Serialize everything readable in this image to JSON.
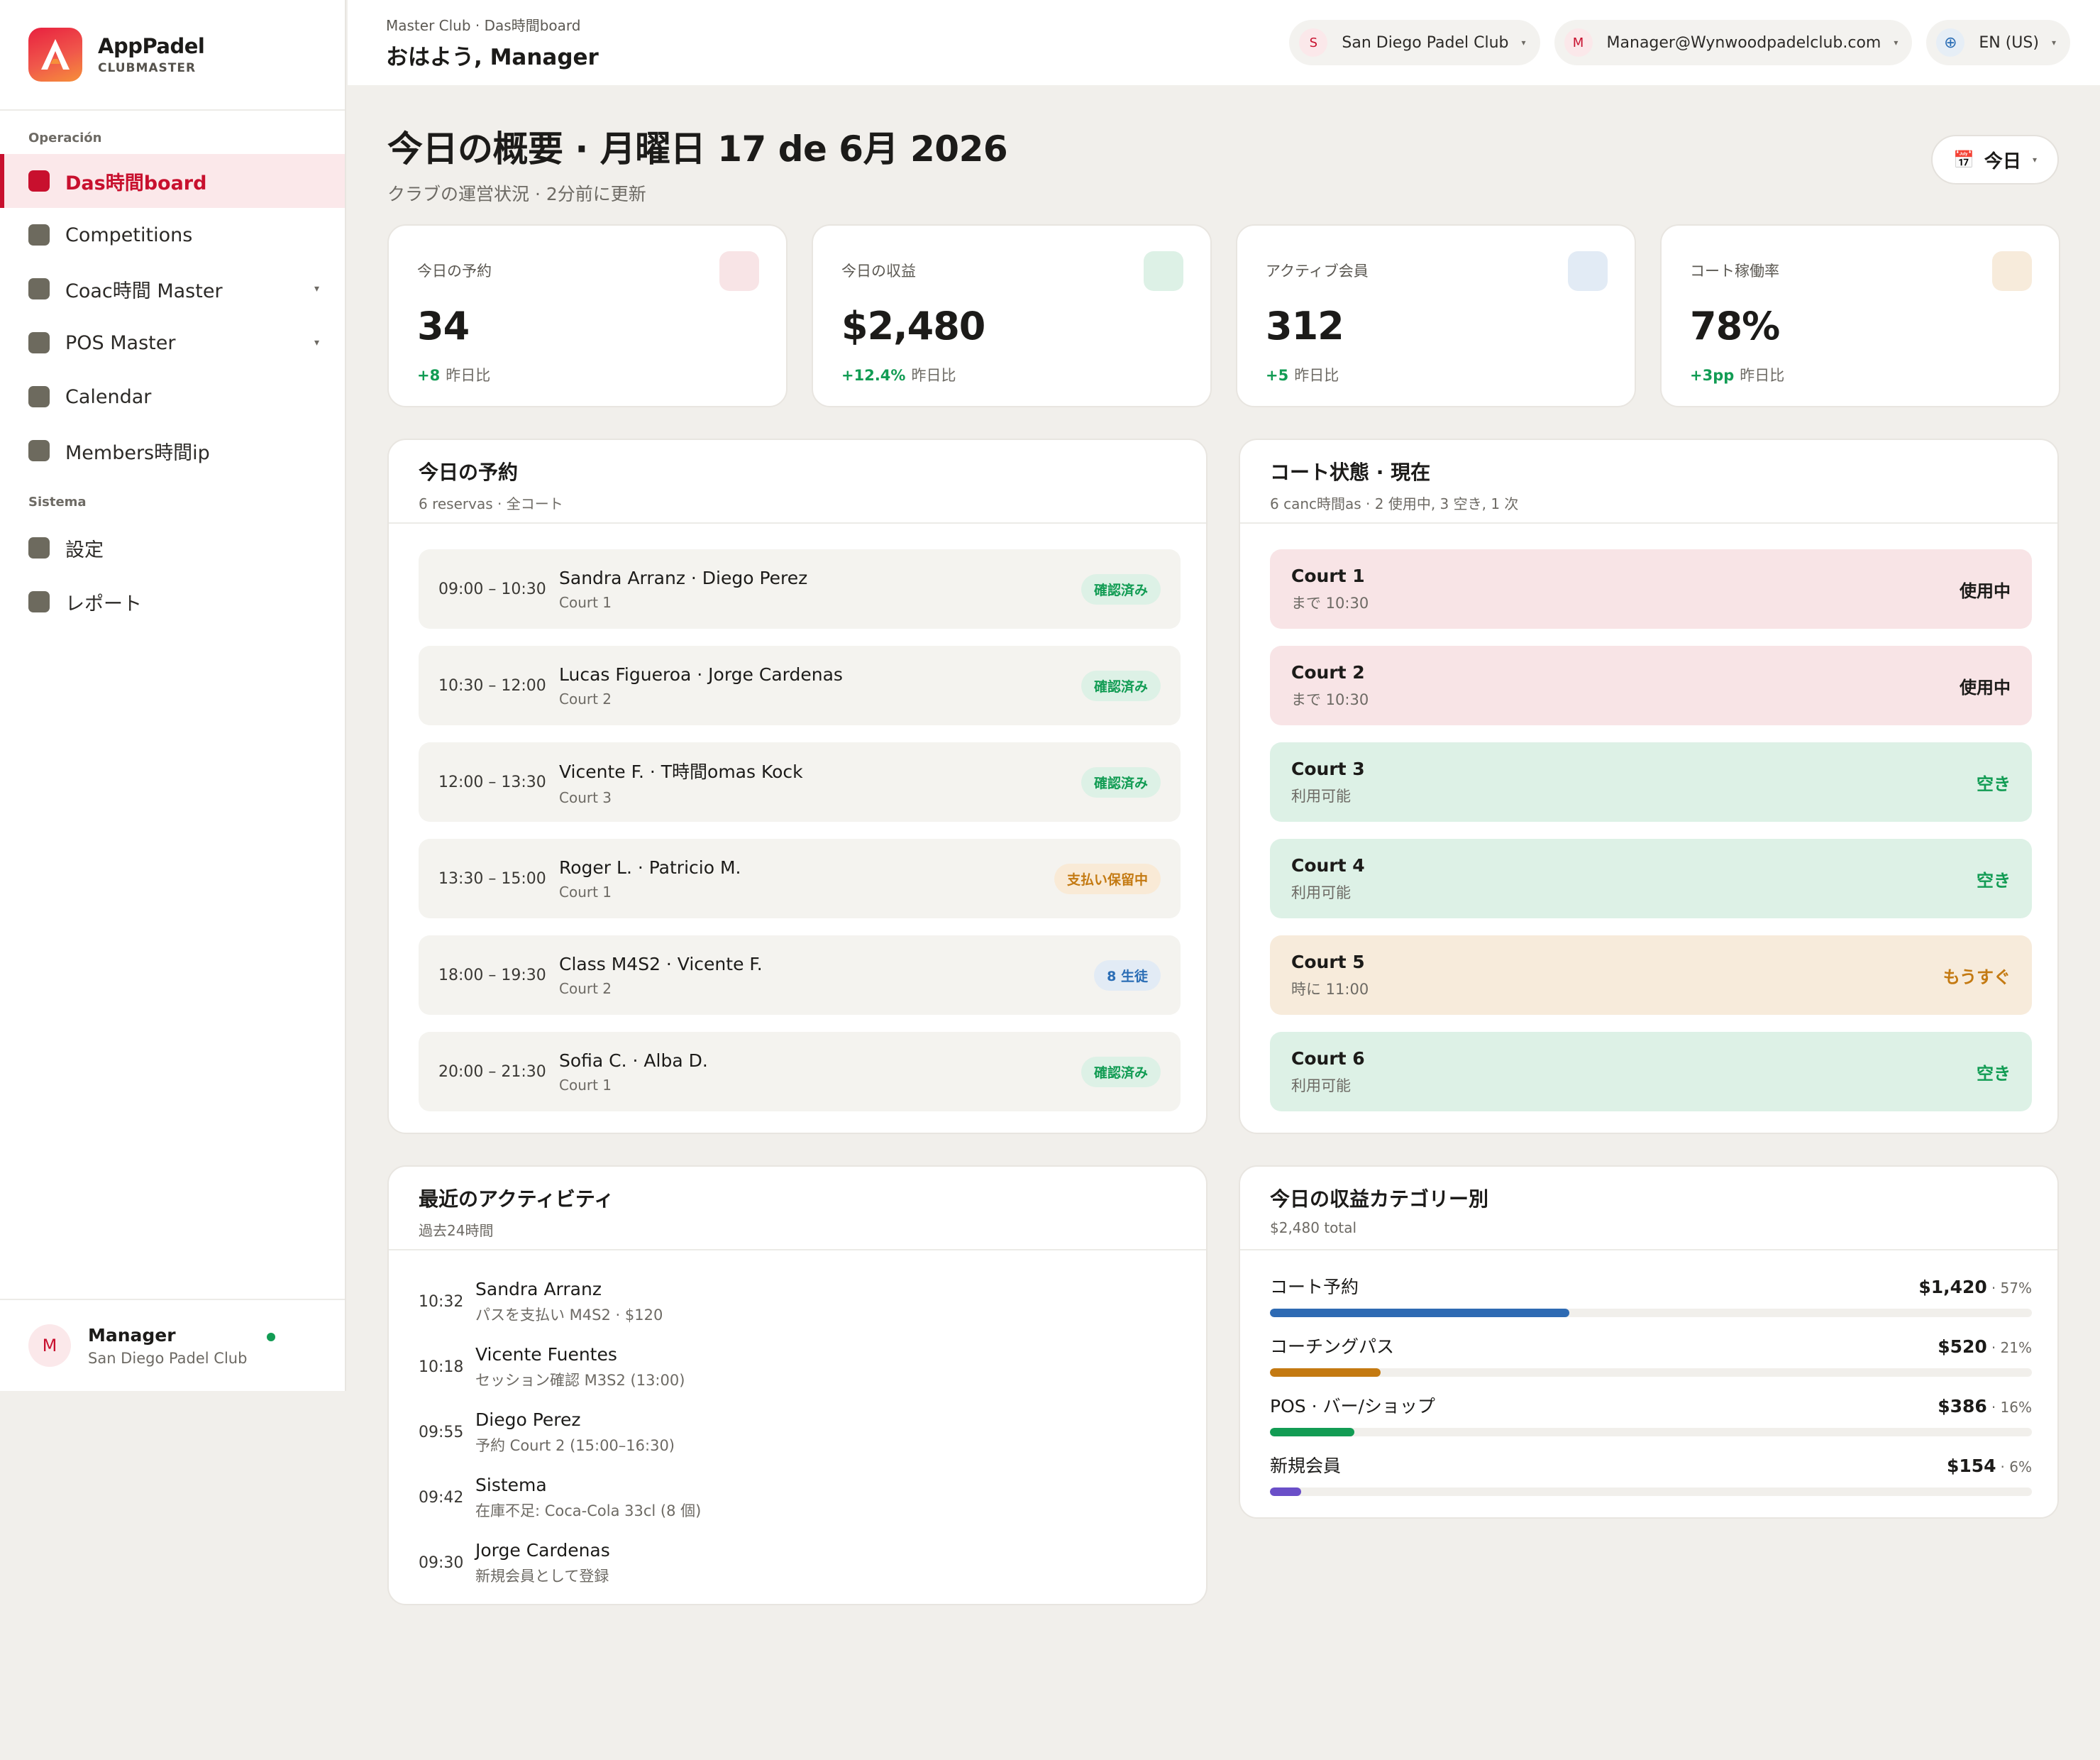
{
  "app": {
    "name": "AppPadel",
    "subtitle": "CLUBMASTER"
  },
  "sidebar": {
    "sections": [
      {
        "label": "Operación"
      },
      {
        "label": "Sistema"
      }
    ],
    "items": [
      {
        "label": "Das時間board",
        "active": true
      },
      {
        "label": "Competitions"
      },
      {
        "label": "Coac時間 Master",
        "has_caret": true
      },
      {
        "label": "POS Master",
        "has_caret": true
      },
      {
        "label": "Calendar"
      },
      {
        "label": "Members時間ip"
      },
      {
        "label": "設定"
      },
      {
        "label": "レポート"
      }
    ],
    "user": {
      "initial": "M",
      "name": "Manager",
      "club": "San Diego Padel Club",
      "status": "online"
    }
  },
  "topbar": {
    "breadcrumb": "Master Club · Das時間board",
    "greeting": "おはよう, Manager",
    "club_select": {
      "initial": "S",
      "label": "San Diego Padel Club"
    },
    "user_select": {
      "initial": "M",
      "label": "Manager@Wynwoodpadelclub.com"
    },
    "lang_select": {
      "icon": "globe-icon",
      "label": "EN (US)"
    }
  },
  "page": {
    "title": "今日の概要 · 月曜日 17 de 6月 2026",
    "subtitle": "クラブの運営状況 · 2分前に更新",
    "date_button": "今日"
  },
  "kpis": [
    {
      "label": "今日の予約",
      "value": "34",
      "delta": "+8",
      "delta_suffix": "昨日比",
      "icon_color": "#f8e4e6"
    },
    {
      "label": "今日の収益",
      "value": "$2,480",
      "delta": "+12.4%",
      "delta_suffix": "昨日比",
      "icon_color": "#ddf1e6"
    },
    {
      "label": "アクティブ会員",
      "value": "312",
      "delta": "+5",
      "delta_suffix": "昨日比",
      "icon_color": "#e2ebf5"
    },
    {
      "label": "コート稼働率",
      "value": "78%",
      "delta": "+3pp",
      "delta_suffix": "昨日比",
      "icon_color": "#f7ebdb"
    }
  ],
  "bookings": {
    "title": "今日の予約",
    "subtitle": "6 reservas · 全コート",
    "rows": [
      {
        "time": "09:00 – 10:30",
        "players": "Sandra Arranz · Diego Perez",
        "court": "Court 1",
        "badge": "確認済み",
        "kind": "ok"
      },
      {
        "time": "10:30 – 12:00",
        "players": "Lucas Figueroa · Jorge Cardenas",
        "court": "Court 2",
        "badge": "確認済み",
        "kind": "ok"
      },
      {
        "time": "12:00 – 13:30",
        "players": "Vicente F. · T時間omas Kock",
        "court": "Court 3",
        "badge": "確認済み",
        "kind": "ok"
      },
      {
        "time": "13:30 – 15:00",
        "players": "Roger L. · Patricio M.",
        "court": "Court 1",
        "badge": "支払い保留中",
        "kind": "pend"
      },
      {
        "time": "18:00 – 19:30",
        "players": "Class M4S2 · Vicente F.",
        "court": "Court 2",
        "badge": "8 生徒",
        "kind": "cls"
      },
      {
        "time": "20:00 – 21:30",
        "players": "Sofia C. · Alba D.",
        "court": "Court 1",
        "badge": "確認済み",
        "kind": "ok"
      }
    ]
  },
  "courts": {
    "title": "コート状態 · 現在",
    "subtitle": "6 canc時間as · 2 使用中, 3 空き, 1 次",
    "rows": [
      {
        "name": "Court 1",
        "detail": "まで 10:30",
        "status": "使用中",
        "kind": "busy"
      },
      {
        "name": "Court 2",
        "detail": "まで 10:30",
        "status": "使用中",
        "kind": "busy"
      },
      {
        "name": "Court 3",
        "detail": "利用可能",
        "status": "空き",
        "kind": "free"
      },
      {
        "name": "Court 4",
        "detail": "利用可能",
        "status": "空き",
        "kind": "free"
      },
      {
        "name": "Court 5",
        "detail": "時に 11:00",
        "status": "もうすぐ",
        "kind": "soon"
      },
      {
        "name": "Court 6",
        "detail": "利用可能",
        "status": "空き",
        "kind": "free"
      }
    ]
  },
  "activity": {
    "title": "最近のアクティビティ",
    "subtitle": "過去24時間",
    "rows": [
      {
        "time": "10:32",
        "who": "Sandra Arranz",
        "what": "パスを支払い M4S2 · $120"
      },
      {
        "time": "10:18",
        "who": "Vicente Fuentes",
        "what": "セッション確認 M3S2 (13:00)"
      },
      {
        "time": "09:55",
        "who": "Diego Perez",
        "what": "予約 Court 2 (15:00–16:30)"
      },
      {
        "time": "09:42",
        "who": "Sistema",
        "what": "在庫不足: Coca-Cola 33cl (8 個)"
      },
      {
        "time": "09:30",
        "who": "Jorge Cardenas",
        "what": "新規会員として登録"
      }
    ]
  },
  "revenue": {
    "title": "今日の収益カテゴリー別",
    "subtitle": "$2,480 total",
    "rows": [
      {
        "label": "コート予約",
        "amount": "$1,420",
        "pct_label": "· 57%",
        "share": 0.57,
        "color": "#2e6ab3"
      },
      {
        "label": "コーチングパス",
        "amount": "$520",
        "pct_label": "· 21%",
        "share": 0.21,
        "color": "#c47a12"
      },
      {
        "label": "POS · バー/ショップ",
        "amount": "$386",
        "pct_label": "· 16%",
        "share": 0.16,
        "color": "#129c54"
      },
      {
        "label": "新規会員",
        "amount": "$154",
        "pct_label": "· 6%",
        "share": 0.06,
        "color": "#6a4fc8"
      }
    ]
  }
}
